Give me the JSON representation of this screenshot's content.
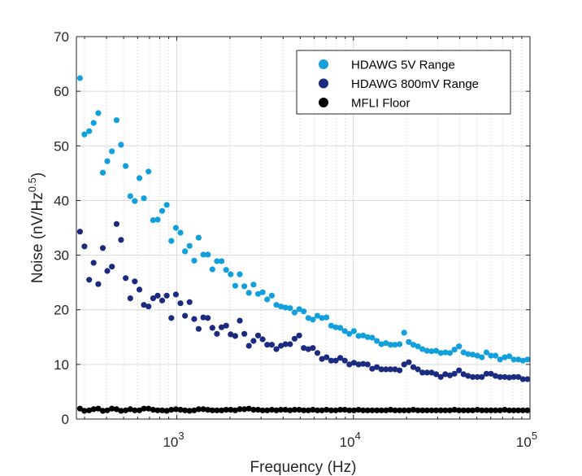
{
  "chart_data": {
    "type": "scatter",
    "title": "",
    "xlabel": "Frequency (Hz)",
    "ylabel_main": "Noise (nV/Hz",
    "ylabel_sup": "0.5",
    "ylabel_close": ")",
    "xscale": "log",
    "xlim": [
      270,
      100000
    ],
    "ylim": [
      0,
      70
    ],
    "grid": true,
    "minor_grid": true,
    "legend_position": "top-right",
    "y_ticks": [
      "0",
      "10",
      "20",
      "30",
      "40",
      "50",
      "60",
      "70"
    ],
    "x_ticks": [
      {
        "base": "10",
        "exp": "3"
      },
      {
        "base": "10",
        "exp": "4"
      },
      {
        "base": "10",
        "exp": "5"
      }
    ],
    "x": [
      283,
      300,
      319,
      338,
      359,
      381,
      404,
      429,
      456,
      483,
      513,
      545,
      578,
      614,
      651,
      691,
      734,
      779,
      826,
      877,
      931,
      988,
      1048,
      1113,
      1181,
      1254,
      1330,
      1412,
      1499,
      1591,
      1688,
      1792,
      1902,
      2018,
      2142,
      2274,
      2413,
      2561,
      2719,
      2885,
      3062,
      3250,
      3450,
      3661,
      3886,
      4125,
      4378,
      4645,
      4931,
      5233,
      5554,
      5895,
      6256,
      6641,
      7047,
      7480,
      7940,
      8426,
      8944,
      9491,
      10070,
      10690,
      11350,
      12040,
      12780,
      13570,
      14400,
      15280,
      16220,
      17220,
      18270,
      19390,
      20580,
      21840,
      23190,
      24610,
      26120,
      27720,
      29430,
      31230,
      33150,
      35190,
      37340,
      39630,
      42060,
      44640,
      47380,
      50290,
      53380,
      56650,
      60120,
      63820,
      67730,
      71890,
      76300,
      80980,
      85960,
      91200,
      96800
    ],
    "series": [
      {
        "name": "HDAWG 5V Range",
        "color": "#12a0dc",
        "values": [
          62.4,
          52.1,
          52.7,
          54.2,
          56.0,
          45.1,
          47.2,
          49.0,
          54.7,
          50.2,
          46.3,
          40.8,
          39.9,
          44.1,
          40.4,
          45.3,
          36.4,
          36.5,
          38.1,
          39.2,
          32.6,
          35.0,
          34.1,
          30.7,
          31.7,
          29.0,
          33.2,
          30.1,
          30.1,
          27.4,
          28.9,
          28.9,
          27.3,
          26.5,
          24.4,
          26.5,
          24.3,
          23.1,
          24.6,
          22.9,
          23.2,
          21.9,
          22.6,
          20.9,
          20.6,
          20.4,
          20.3,
          19.5,
          20.1,
          19.7,
          18.5,
          18.2,
          18.9,
          18.5,
          18.6,
          17.1,
          16.8,
          16.7,
          16.1,
          15.6,
          16.1,
          15.2,
          15.3,
          15.0,
          14.9,
          14.3,
          13.7,
          13.9,
          13.6,
          13.6,
          13.7,
          15.8,
          14.1,
          13.6,
          13.3,
          12.8,
          12.5,
          12.4,
          12.5,
          12.1,
          12.2,
          12.1,
          12.7,
          13.3,
          12.2,
          11.9,
          11.8,
          11.6,
          11.3,
          12.2,
          11.6,
          11.6,
          10.9,
          11.3,
          11.5,
          10.9,
          10.9,
          10.7,
          10.9
        ]
      },
      {
        "name": "HDAWG 800mV Range",
        "color": "#1b2b80",
        "values": [
          34.3,
          31.6,
          25.5,
          28.6,
          24.7,
          31.3,
          27.1,
          27.9,
          35.7,
          32.8,
          25.8,
          22.1,
          25.2,
          23.7,
          20.9,
          20.6,
          22.1,
          22.6,
          21.7,
          22.6,
          18.5,
          22.8,
          21.2,
          18.9,
          21.4,
          18.3,
          16.5,
          18.6,
          18.5,
          16.7,
          15.6,
          16.8,
          17.1,
          15.5,
          15.2,
          18.0,
          15.6,
          13.4,
          14.3,
          15.3,
          14.6,
          13.6,
          13.6,
          12.8,
          13.4,
          13.7,
          13.7,
          14.7,
          15.3,
          13.0,
          12.8,
          13.0,
          12.1,
          11.0,
          11.3,
          10.7,
          10.7,
          11.2,
          10.7,
          10.0,
          10.3,
          10.0,
          10.1,
          10.0,
          9.2,
          9.5,
          9.1,
          9.1,
          9.1,
          9.1,
          8.9,
          10.0,
          10.4,
          9.5,
          9.1,
          8.5,
          8.5,
          8.5,
          8.2,
          7.7,
          8.2,
          8.0,
          8.3,
          8.9,
          8.2,
          7.9,
          7.7,
          7.7,
          7.7,
          8.3,
          8.3,
          7.9,
          7.7,
          7.7,
          7.6,
          7.7,
          7.7,
          7.3,
          7.3
        ]
      },
      {
        "name": "MFLI Floor",
        "color": "#000000",
        "values": [
          1.9,
          1.5,
          1.6,
          1.8,
          1.9,
          1.5,
          1.6,
          1.9,
          1.8,
          1.5,
          1.6,
          1.8,
          1.6,
          1.6,
          1.9,
          1.9,
          1.7,
          1.6,
          1.6,
          1.5,
          1.7,
          1.8,
          1.7,
          1.6,
          1.5,
          1.6,
          1.8,
          1.8,
          1.7,
          1.6,
          1.6,
          1.6,
          1.7,
          1.7,
          1.6,
          1.8,
          1.8,
          1.9,
          1.7,
          1.7,
          1.6,
          1.6,
          1.7,
          1.6,
          1.7,
          1.7,
          1.6,
          1.7,
          1.7,
          1.6,
          1.6,
          1.7,
          1.6,
          1.6,
          1.7,
          1.6,
          1.6,
          1.7,
          1.7,
          1.6,
          1.6,
          1.7,
          1.6,
          1.6,
          1.6,
          1.6,
          1.6,
          1.6,
          1.7,
          1.6,
          1.6,
          1.6,
          1.6,
          1.7,
          1.6,
          1.6,
          1.6,
          1.6,
          1.6,
          1.6,
          1.6,
          1.6,
          1.7,
          1.6,
          1.6,
          1.6,
          1.6,
          1.7,
          1.6,
          1.6,
          1.6,
          1.6,
          1.6,
          1.7,
          1.6,
          1.6,
          1.6,
          1.6,
          1.6
        ]
      }
    ]
  }
}
